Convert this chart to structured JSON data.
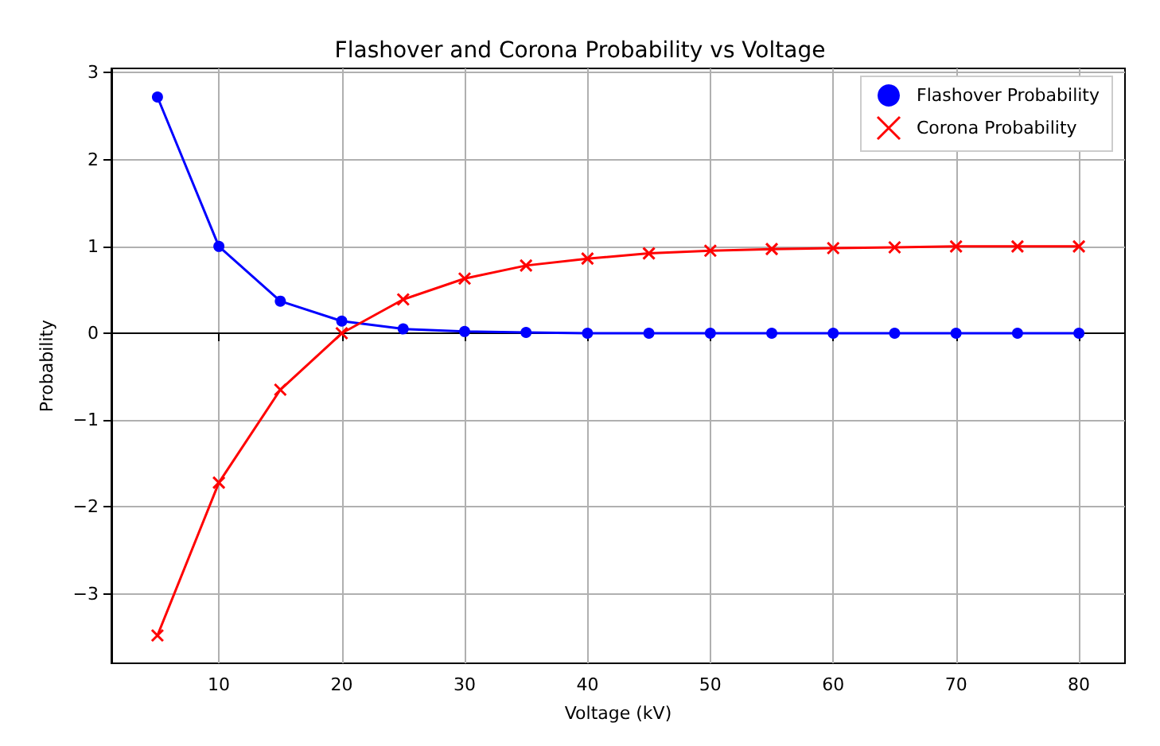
{
  "chart_data": {
    "type": "line",
    "title": "Flashover and Corona Probability vs Voltage",
    "xlabel": "Voltage (kV)",
    "ylabel": "Probability",
    "x": [
      5,
      10,
      15,
      20,
      25,
      30,
      35,
      40,
      45,
      50,
      55,
      60,
      65,
      70,
      75,
      80
    ],
    "series": [
      {
        "name": "Flashover Probability",
        "color": "#0000ff",
        "marker": "circle",
        "values": [
          2.72,
          1,
          0.37,
          0.14,
          0.05,
          0.02,
          0.01,
          0,
          0,
          0,
          0,
          0,
          0,
          0,
          0,
          0
        ]
      },
      {
        "name": "Corona Probability",
        "color": "#ff0000",
        "marker": "cross",
        "values": [
          -3.48,
          -1.72,
          -0.65,
          0,
          0.39,
          0.63,
          0.78,
          0.86,
          0.92,
          0.95,
          0.97,
          0.98,
          0.99,
          1,
          1,
          1
        ]
      }
    ],
    "xlim": [
      1.25,
      83.75
    ],
    "xticks": [
      10,
      20,
      30,
      40,
      50,
      60,
      70,
      80
    ],
    "ylim": [
      -3.8,
      3.05
    ],
    "yticks": [
      {
        "value": -3,
        "label": "−3"
      },
      {
        "value": -2,
        "label": "−2"
      },
      {
        "value": -1,
        "label": "−1"
      },
      0,
      1,
      2,
      3
    ],
    "grid": true,
    "legend": "top right"
  }
}
